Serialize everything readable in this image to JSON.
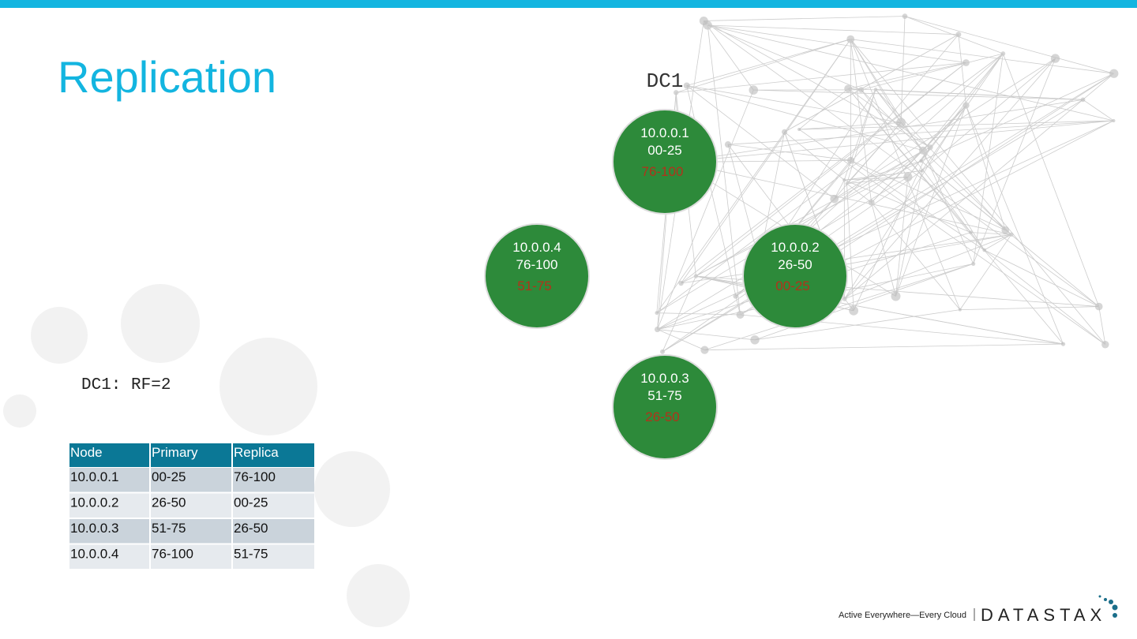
{
  "header": {
    "title": "Replication"
  },
  "diagram": {
    "label": "DC1",
    "nodes": [
      {
        "ip": "10.0.0.1",
        "primary": "00-25",
        "replica": "76-100"
      },
      {
        "ip": "10.0.0.2",
        "primary": "26-50",
        "replica": "00-25"
      },
      {
        "ip": "10.0.0.3",
        "primary": "51-75",
        "replica": "26-50"
      },
      {
        "ip": "10.0.0.4",
        "primary": "76-100",
        "replica": "51-75"
      }
    ]
  },
  "rf_label": "DC1: RF=2",
  "table": {
    "header": [
      "Node",
      "Primary",
      "Replica"
    ],
    "rows": [
      [
        "10.0.0.1",
        "00-25",
        "76-100"
      ],
      [
        "10.0.0.2",
        "26-50",
        "00-25"
      ],
      [
        "10.0.0.3",
        "51-75",
        "26-50"
      ],
      [
        "10.0.0.4",
        "76-100",
        "51-75"
      ]
    ]
  },
  "footer": {
    "tagline": "Active Everywhere—Every Cloud",
    "logo": "DATASTAX"
  }
}
